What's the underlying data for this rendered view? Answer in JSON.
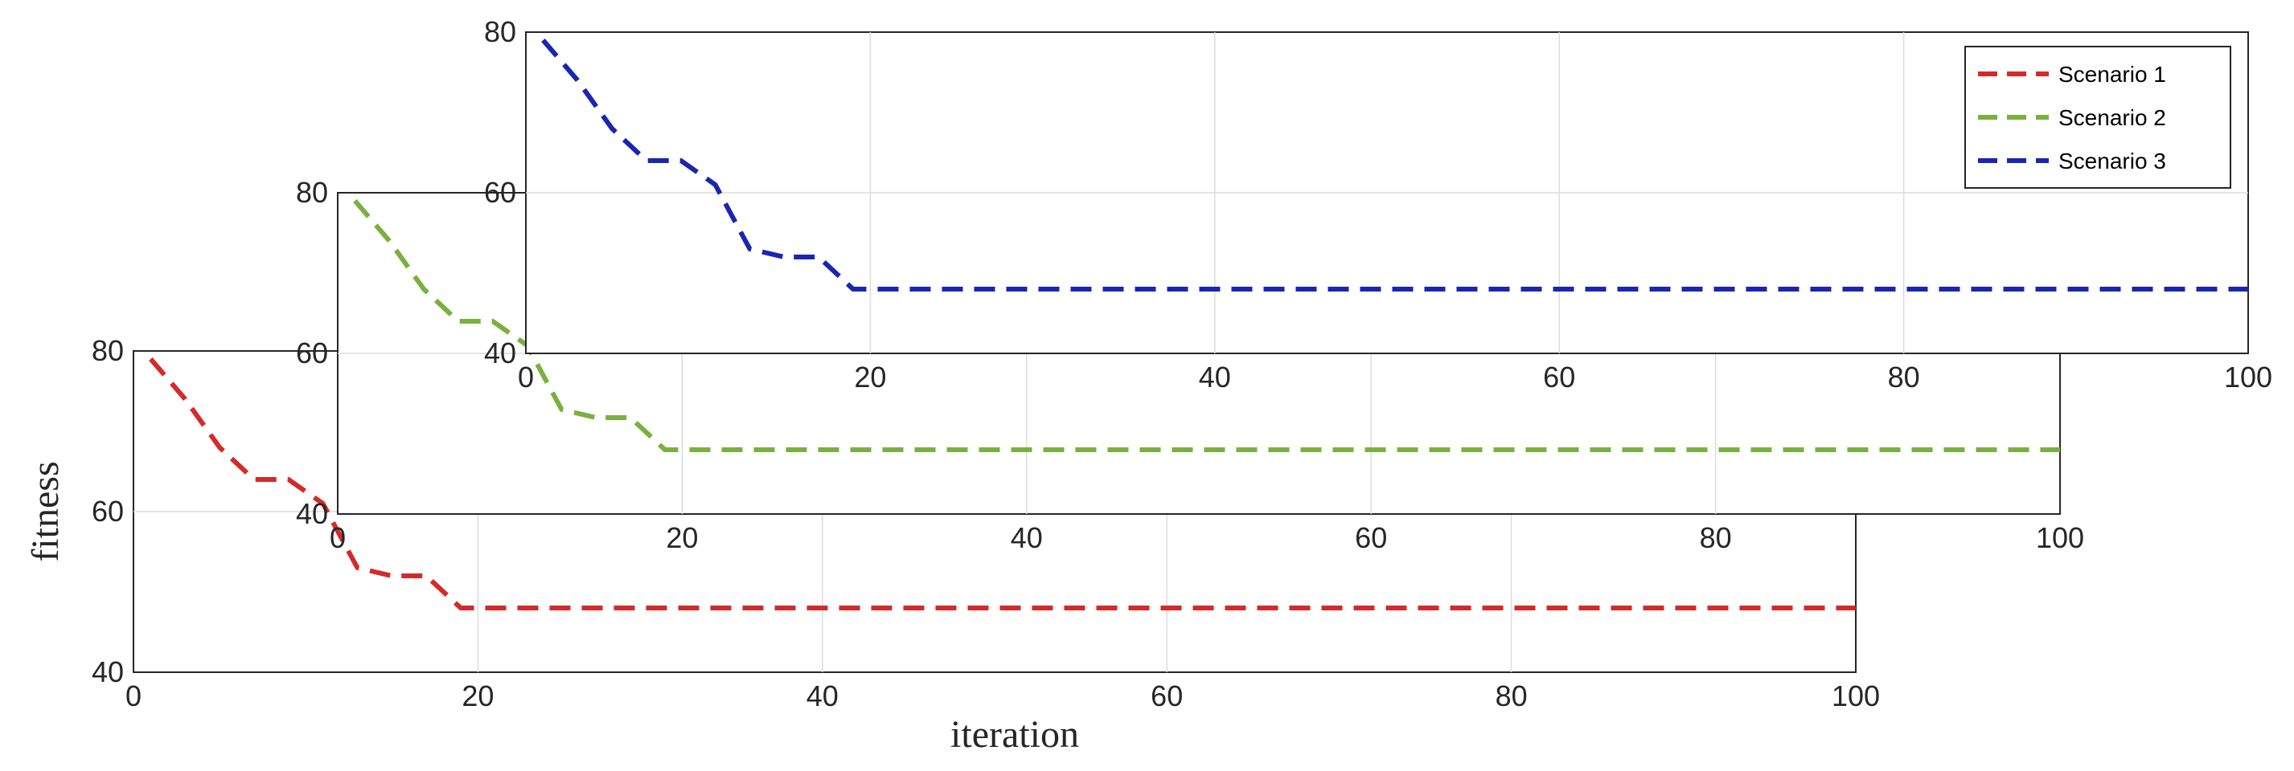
{
  "chart_data": {
    "type": "line",
    "xlabel": "iteration",
    "ylabel": "fitness",
    "grid": true,
    "legend_position": "top-right",
    "panels": [
      {
        "name": "Scenario 1",
        "color": "#d42a2a",
        "xlim": [
          0,
          100
        ],
        "ylim": [
          40,
          80
        ],
        "xticks": [
          "0",
          "20",
          "40",
          "60",
          "80",
          "100"
        ],
        "yticks": [
          "40",
          "60",
          "80"
        ],
        "x": [
          1,
          3,
          5,
          7,
          9,
          11,
          12,
          13,
          15,
          17,
          19,
          20,
          40,
          60,
          80,
          100
        ],
        "y": [
          79,
          74,
          68,
          64,
          64,
          61,
          57,
          53,
          52,
          52,
          48,
          48,
          48,
          48,
          48,
          48
        ]
      },
      {
        "name": "Scenario 2",
        "color": "#7ab03f",
        "xlim": [
          0,
          100
        ],
        "ylim": [
          40,
          80
        ],
        "xticks": [
          "0",
          "20",
          "40",
          "60",
          "80",
          "100"
        ],
        "yticks": [
          "40",
          "60",
          "80"
        ],
        "x": [
          1,
          3,
          5,
          7,
          9,
          11,
          12,
          13,
          15,
          17,
          19,
          20,
          40,
          60,
          80,
          100
        ],
        "y": [
          79,
          74,
          68,
          64,
          64,
          61,
          57,
          53,
          52,
          52,
          48,
          48,
          48,
          48,
          48,
          48
        ]
      },
      {
        "name": "Scenario 3",
        "color": "#1a26b0",
        "xlim": [
          0,
          100
        ],
        "ylim": [
          40,
          80
        ],
        "xticks": [
          "0",
          "20",
          "40",
          "60",
          "80",
          "100"
        ],
        "yticks": [
          "40",
          "60",
          "80"
        ],
        "x": [
          1,
          3,
          5,
          7,
          9,
          11,
          12,
          13,
          15,
          17,
          19,
          20,
          40,
          60,
          80,
          100
        ],
        "y": [
          79,
          74,
          68,
          64,
          64,
          61,
          57,
          53,
          52,
          52,
          48,
          48,
          48,
          48,
          48,
          48
        ]
      }
    ],
    "legend": [
      "Scenario 1",
      "Scenario 2",
      "Scenario 3"
    ]
  }
}
